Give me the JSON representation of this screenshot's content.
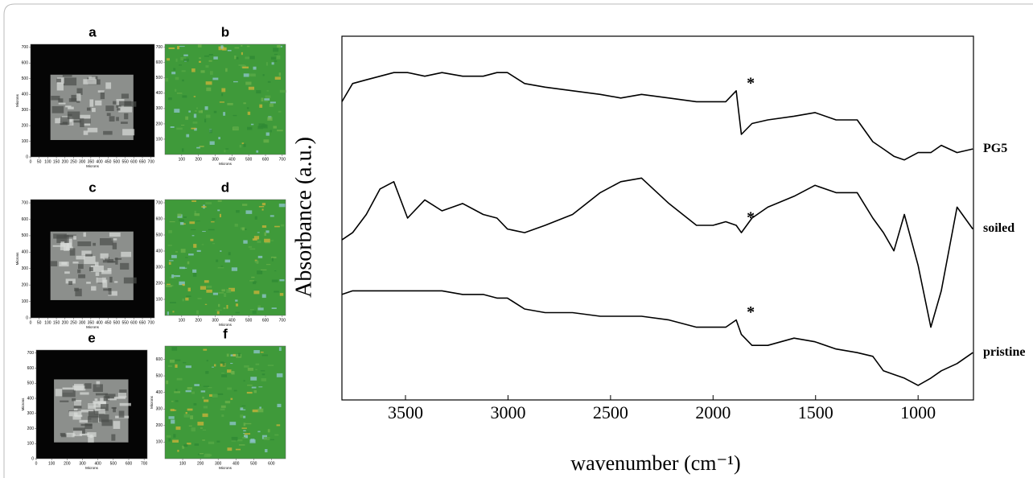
{
  "panels": [
    {
      "label": "a",
      "xlabel": "Microns",
      "ylabel": "Microns",
      "xlim": [
        0,
        720
      ],
      "ylim": [
        0,
        720
      ],
      "xticks": [
        0,
        50,
        100,
        150,
        200,
        250,
        300,
        350,
        400,
        450,
        500,
        550,
        600,
        650,
        700
      ],
      "yticks": [
        0,
        100,
        200,
        300,
        400,
        500,
        600,
        700
      ]
    },
    {
      "label": "b",
      "xlabel": "Microns",
      "ylabel": "Microns",
      "xlim": [
        0,
        720
      ],
      "ylim": [
        0,
        720
      ],
      "xticks": [
        100,
        200,
        300,
        400,
        500,
        600,
        700
      ],
      "yticks": [
        100,
        200,
        300,
        400,
        500,
        600,
        700
      ]
    },
    {
      "label": "c",
      "xlabel": "Microns",
      "ylabel": "Microns",
      "xlim": [
        0,
        720
      ],
      "ylim": [
        0,
        720
      ],
      "xticks": [
        0,
        50,
        100,
        150,
        200,
        250,
        300,
        350,
        400,
        450,
        500,
        550,
        600,
        650,
        700
      ],
      "yticks": [
        0,
        100,
        200,
        300,
        400,
        500,
        600,
        700
      ]
    },
    {
      "label": "d",
      "xlabel": "Microns",
      "ylabel": "Microns",
      "xlim": [
        0,
        720
      ],
      "ylim": [
        0,
        720
      ],
      "xticks": [
        100,
        200,
        300,
        400,
        500,
        600,
        700
      ],
      "yticks": [
        100,
        200,
        300,
        400,
        500,
        600,
        700
      ]
    },
    {
      "label": "e",
      "xlabel": "Microns",
      "ylabel": "Microns",
      "xlim": [
        0,
        720
      ],
      "ylim": [
        0,
        720
      ],
      "xticks": [
        0,
        100,
        200,
        300,
        400,
        500,
        600,
        700
      ],
      "yticks": [
        0,
        100,
        200,
        300,
        400,
        500,
        600,
        700
      ]
    },
    {
      "label": "f",
      "xlabel": "Microns",
      "ylabel": "Microns",
      "xlim": [
        0,
        680
      ],
      "ylim": [
        0,
        680
      ],
      "xticks": [
        100,
        200,
        300,
        400,
        500,
        600
      ],
      "yticks": [
        100,
        200,
        300,
        400,
        500,
        600
      ]
    }
  ],
  "chart_data": {
    "type": "line",
    "x_label": "wavenumber (cm⁻¹)",
    "y_label": "Absorbance (a.u.)",
    "x": [
      3810,
      3758,
      3691,
      3624,
      3557,
      3490,
      3406,
      3322,
      3221,
      3121,
      3054,
      3003,
      2919,
      2819,
      2685,
      2550,
      2450,
      2349,
      2215,
      2081,
      2000,
      1938,
      1887,
      1862,
      1810,
      1733,
      1605,
      1503,
      1400,
      1297,
      1221,
      1169,
      1118,
      1067,
      1000,
      938,
      887,
      810,
      733
    ],
    "xlim": [
      3810,
      730
    ],
    "xticks": [
      3500,
      3000,
      2500,
      2000,
      1500,
      1000
    ],
    "ylim": [
      0,
      100
    ],
    "series": [
      {
        "name": "PG5",
        "color": "#000000",
        "values": [
          82,
          87,
          88,
          89,
          90,
          90,
          89,
          90,
          89,
          89,
          90,
          90,
          87,
          86,
          85,
          84,
          83,
          84,
          83,
          82,
          82,
          82,
          85,
          73,
          76,
          77,
          78,
          79,
          77,
          77,
          71,
          69,
          67,
          66,
          68,
          68,
          70,
          68,
          69
        ]
      },
      {
        "name": "soiled",
        "color": "#000000",
        "values": [
          44,
          46,
          51,
          58,
          60,
          50,
          55,
          52,
          54,
          51,
          50,
          47,
          46,
          48,
          51,
          57,
          60,
          61,
          54,
          48,
          48,
          49,
          48,
          46,
          50,
          53,
          56,
          59,
          57,
          57,
          50,
          46,
          41,
          51,
          37,
          20,
          30,
          53,
          47
        ]
      },
      {
        "name": "pristine",
        "color": "#000000",
        "values": [
          29,
          30,
          30,
          30,
          30,
          30,
          30,
          30,
          29,
          29,
          28,
          28,
          25,
          24,
          24,
          23,
          23,
          23,
          22,
          20,
          20,
          20,
          22,
          18,
          15,
          15,
          17,
          16,
          14,
          13,
          12,
          8,
          7,
          6,
          4,
          6,
          8,
          10,
          13
        ]
      }
    ],
    "annotations": [
      "*",
      "*",
      "*"
    ]
  }
}
